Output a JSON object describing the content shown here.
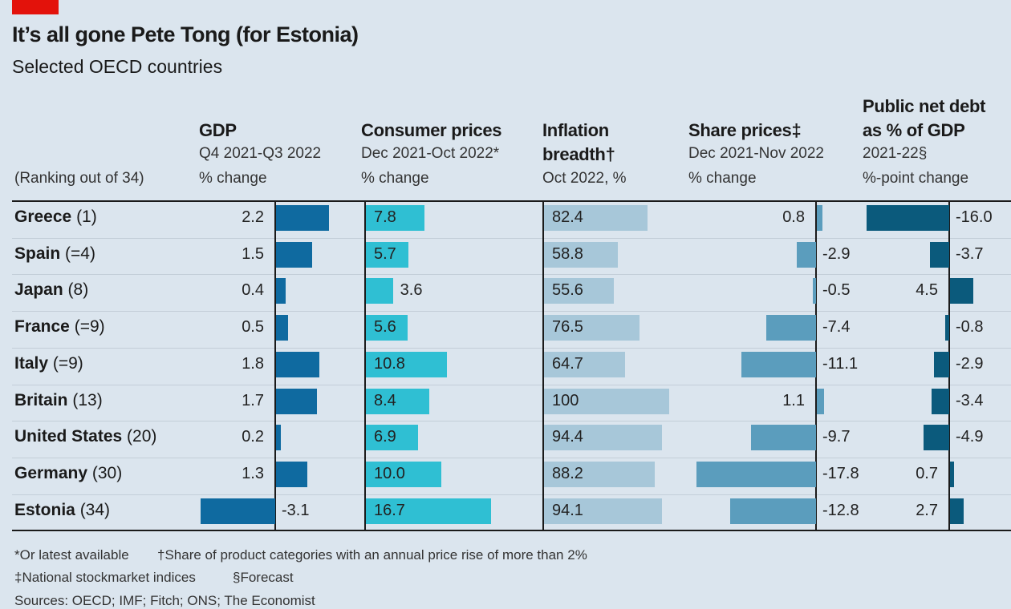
{
  "title": "It’s all gone Pete Tong (for Estonia)",
  "subtitle": "Selected OECD countries",
  "ranking_note": "(Ranking out of 34)",
  "colors": {
    "gdp": "#0f6aa0",
    "cpi": "#2fbfd3",
    "breadth": "#a7c7d9",
    "shares": "#5b9dbd",
    "debt": "#0b5a7c",
    "brand": "#e3120b"
  },
  "chart_data": {
    "type": "table",
    "title": "It’s all gone Pete Tong (for Estonia)",
    "subtitle": "Selected OECD countries",
    "rows": [
      {
        "country": "Greece",
        "rank": "(1)"
      },
      {
        "country": "Spain",
        "rank": "(=4)"
      },
      {
        "country": "Japan",
        "rank": "(8)"
      },
      {
        "country": "France",
        "rank": "(=9)"
      },
      {
        "country": "Italy",
        "rank": "(=9)"
      },
      {
        "country": "Britain",
        "rank": "(13)"
      },
      {
        "country": "United States",
        "rank": "(20)"
      },
      {
        "country": "Germany",
        "rank": "(30)"
      },
      {
        "country": "Estonia",
        "rank": "(34)"
      }
    ],
    "columns": [
      {
        "key": "gdp",
        "title": "GDP",
        "sub1": "Q4 2021-Q3 2022",
        "sub2": "% change",
        "values": [
          "2.2",
          "1.5",
          "0.4",
          "0.5",
          "1.8",
          "1.7",
          "0.2",
          "1.3",
          "-3.1"
        ]
      },
      {
        "key": "cpi",
        "title": "Consumer prices",
        "sub1": "Dec 2021-Oct 2022*",
        "sub2": "% change",
        "values": [
          "7.8",
          "5.7",
          "3.6",
          "5.6",
          "10.8",
          "8.4",
          "6.9",
          "10.0",
          "16.7"
        ]
      },
      {
        "key": "breadth",
        "title": "Inflation",
        "title2": "breadth†",
        "sub1": "Oct 2022, %",
        "values": [
          "82.4",
          "58.8",
          "55.6",
          "76.5",
          "64.7",
          "100",
          "94.4",
          "88.2",
          "94.1"
        ]
      },
      {
        "key": "shares",
        "title": "Share prices‡",
        "sub1": "Dec 2021-Nov 2022",
        "sub2": "% change",
        "values": [
          "0.8",
          "-2.9",
          "-0.5",
          "-7.4",
          "-11.1",
          "1.1",
          "-9.7",
          "-17.8",
          "-12.8"
        ]
      },
      {
        "key": "debt",
        "title": "Public net debt",
        "title2": "as % of GDP",
        "sub1": "2021-22§",
        "sub2": "%-point change",
        "values": [
          "-16.0",
          "-3.7",
          "4.5",
          "-0.8",
          "-2.9",
          "-3.4",
          "-4.9",
          "0.7",
          "2.7"
        ]
      }
    ]
  },
  "footnotes": {
    "a": "*Or latest available",
    "b": "†Share of product categories with an annual price rise of more than 2%",
    "c": "‡National stockmarket indices",
    "d": "§Forecast",
    "sources": "Sources: OECD; IMF; Fitch; ONS; The Economist"
  }
}
